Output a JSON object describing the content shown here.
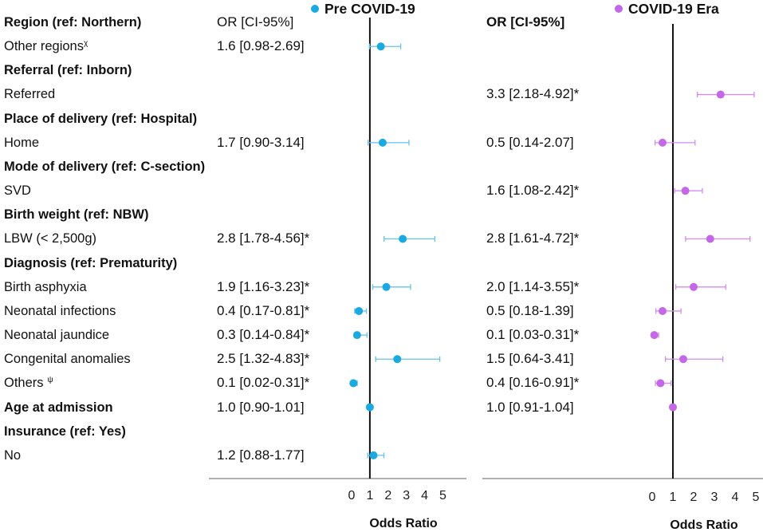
{
  "chart_data": {
    "type": "scatter",
    "xlabel": "Odds Ratio",
    "xlim": [
      0,
      5
    ],
    "xticks": [
      "0",
      "1",
      "2",
      "3",
      "4",
      "5"
    ],
    "reference_line": 1,
    "series": [
      {
        "name": "Pre COVID-19",
        "or_header": "OR [CI-95%]",
        "color": "#1ba9e1",
        "ci_color": "#62c3ed"
      },
      {
        "name": "COVID-19 Era",
        "or_header": "OR [CI-95%]",
        "color": "#c468e8",
        "ci_color": "#d38cf0"
      }
    ],
    "rows": [
      {
        "label": "Region (ref: Northern)"
      },
      {
        "label": "Other regions",
        "note": "χ",
        "pre": {
          "or": 1.6,
          "lo": 0.98,
          "hi": 2.69,
          "text": "1.6 [0.98-2.69]"
        }
      },
      {
        "label": "Referral (ref: Inborn)"
      },
      {
        "label": "Referred",
        "covid": {
          "or": 3.3,
          "lo": 2.18,
          "hi": 4.92,
          "text": "3.3 [2.18-4.92]*"
        }
      },
      {
        "label": "Place of delivery (ref: Hospital)"
      },
      {
        "label": "Home",
        "pre": {
          "or": 1.7,
          "lo": 0.9,
          "hi": 3.14,
          "text": "1.7 [0.90-3.14]"
        },
        "covid": {
          "or": 0.5,
          "lo": 0.14,
          "hi": 2.07,
          "text": "0.5 [0.14-2.07]"
        }
      },
      {
        "label": "Mode of delivery (ref: C-section)"
      },
      {
        "label": "SVD",
        "covid": {
          "or": 1.6,
          "lo": 1.08,
          "hi": 2.42,
          "text": "1.6 [1.08-2.42]*"
        }
      },
      {
        "label": "Birth weight (ref: NBW)"
      },
      {
        "label": "LBW (< 2,500g)",
        "pre": {
          "or": 2.8,
          "lo": 1.78,
          "hi": 4.56,
          "text": "2.8 [1.78-4.56]*"
        },
        "covid": {
          "or": 2.8,
          "lo": 1.61,
          "hi": 4.72,
          "text": "2.8 [1.61-4.72]*"
        }
      },
      {
        "label": "Diagnosis (ref: Prematurity)"
      },
      {
        "label": "Birth asphyxia",
        "pre": {
          "or": 1.9,
          "lo": 1.16,
          "hi": 3.23,
          "text": "1.9 [1.16-3.23]*"
        },
        "covid": {
          "or": 2.0,
          "lo": 1.14,
          "hi": 3.55,
          "text": "2.0 [1.14-3.55]*"
        }
      },
      {
        "label": "Neonatal infections",
        "pre": {
          "or": 0.4,
          "lo": 0.17,
          "hi": 0.81,
          "text": "0.4 [0.17-0.81]*"
        },
        "covid": {
          "or": 0.5,
          "lo": 0.18,
          "hi": 1.39,
          "text": "0.5 [0.18-1.39]"
        }
      },
      {
        "label": "Neonatal jaundice",
        "pre": {
          "or": 0.3,
          "lo": 0.14,
          "hi": 0.84,
          "text": "0.3 [0.14-0.84]*"
        },
        "covid": {
          "or": 0.1,
          "lo": 0.03,
          "hi": 0.31,
          "text": "0.1 [0.03-0.31]*"
        }
      },
      {
        "label": "Congenital anomalies",
        "pre": {
          "or": 2.5,
          "lo": 1.32,
          "hi": 4.83,
          "text": "2.5 [1.32-4.83]*"
        },
        "covid": {
          "or": 1.5,
          "lo": 0.64,
          "hi": 3.41,
          "text": "1.5 [0.64-3.41]"
        }
      },
      {
        "label": "Others",
        "note": "ψ",
        "pre": {
          "or": 0.1,
          "lo": 0.02,
          "hi": 0.31,
          "text": "0.1 [0.02-0.31]*"
        },
        "covid": {
          "or": 0.4,
          "lo": 0.16,
          "hi": 0.91,
          "text": "0.4 [0.16-0.91]*"
        }
      },
      {
        "label": "Age at admission",
        "pre": {
          "or": 1.0,
          "lo": 0.9,
          "hi": 1.01,
          "text": "1.0 [0.90-1.01]"
        },
        "covid": {
          "or": 1.0,
          "lo": 0.91,
          "hi": 1.04,
          "text": "1.0 [0.91-1.04]"
        }
      },
      {
        "label": "Insurance (ref: Yes)"
      },
      {
        "label": "No",
        "pre": {
          "or": 1.2,
          "lo": 0.88,
          "hi": 1.77,
          "text": "1.2 [0.88-1.77]"
        }
      }
    ]
  }
}
